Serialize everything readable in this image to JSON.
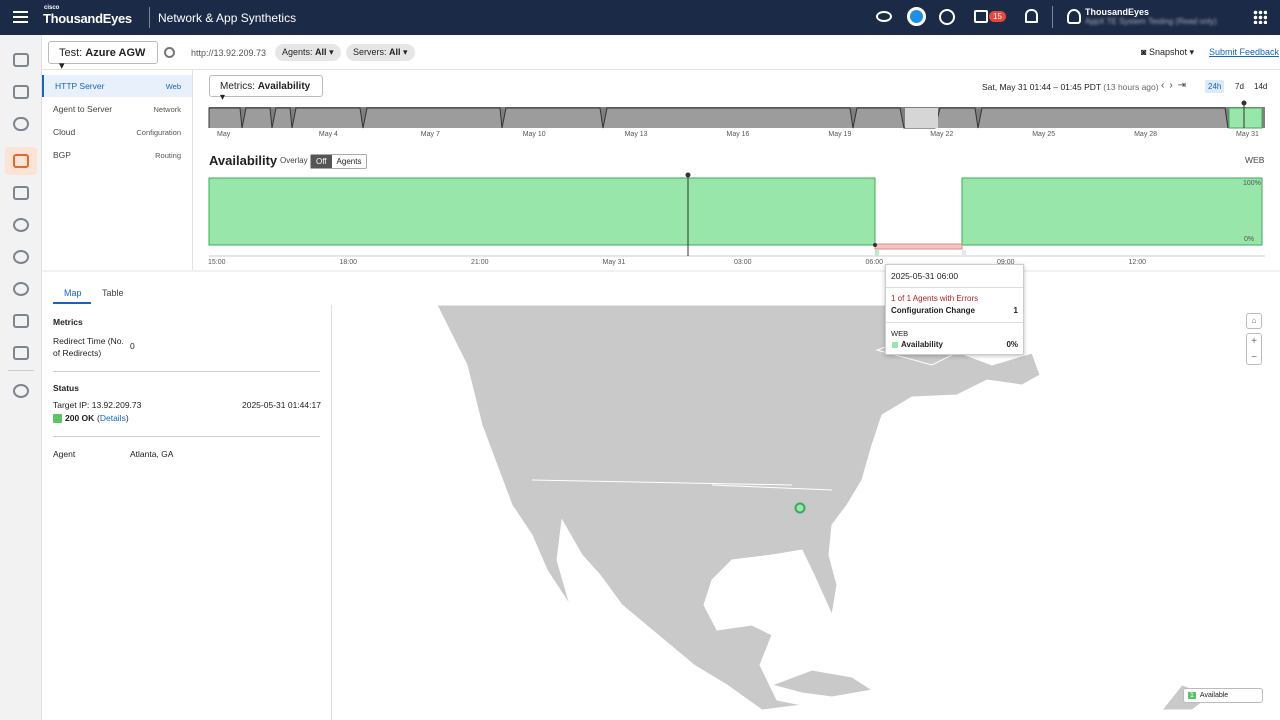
{
  "header": {
    "brand_small": "cisco",
    "brand": "ThousandEyes",
    "product": "Network & App Synthetics",
    "badge": "15",
    "user_org": "ThousandEyes",
    "user_sub": "AppX TE System Testing (Read only)"
  },
  "toolbar": {
    "test_label": "Test:",
    "test_name": "Azure AGW",
    "url": "http://13.92.209.73",
    "agents_label": "Agents:",
    "agents_value": "All",
    "servers_label": "Servers:",
    "servers_value": "All",
    "snapshot": "Snapshot",
    "feedback": "Submit Feedback"
  },
  "layers": [
    {
      "name": "HTTP Server",
      "group": "Web"
    },
    {
      "name": "Agent to Server",
      "group": "Network"
    },
    {
      "name": "Cloud",
      "group": "Configuration"
    },
    {
      "name": "BGP",
      "group": "Routing"
    }
  ],
  "metrics": {
    "label": "Metrics:",
    "value": "Availability",
    "time_range": "Sat, May 31 01:44 – 01:45 PDT",
    "relative": "(13 hours ago)",
    "ranges": [
      "24h",
      "7d",
      "14d"
    ]
  },
  "timeline_labels": [
    "May",
    "May 4",
    "May 7",
    "May 10",
    "May 13",
    "May 16",
    "May 19",
    "May 22",
    "May 25",
    "May 28",
    "May 31"
  ],
  "chart": {
    "title": "Availability",
    "overlay": "Overlay",
    "toggle": [
      "Off",
      "Agents"
    ],
    "tag": "WEB",
    "y_top": "100%",
    "y_bottom": "0%",
    "x_labels": [
      "15:00",
      "18:00",
      "21:00",
      "May 31",
      "03:00",
      "06:00",
      "09:00",
      "12:00"
    ]
  },
  "tabs": [
    "Map",
    "Table"
  ],
  "panel": {
    "metrics_heading": "Metrics",
    "redirect_label": "Redirect Time (No. of Redirects)",
    "redirect_value": "0",
    "status_heading": "Status",
    "target": "Target IP: 13.92.209.73",
    "timestamp": "2025-05-31 01:44:17",
    "status_code": "200 OK",
    "details": "Details",
    "agent_label": "Agent",
    "agent_value": "Atlanta, GA"
  },
  "tooltip": {
    "time": "2025-05-31 06:00",
    "errors": "1 of 1 Agents with Errors",
    "row_label": "Configuration Change",
    "row_value": "1",
    "section": "WEB",
    "metric": "Availability",
    "metric_value": "0%"
  },
  "legend": {
    "count": "1",
    "label": "Available"
  }
}
